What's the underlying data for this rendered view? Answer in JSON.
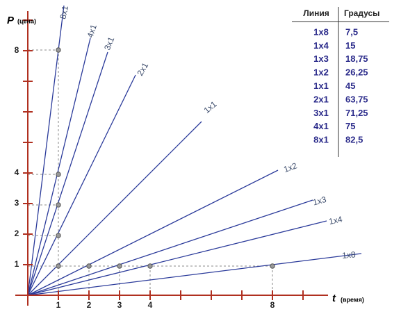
{
  "axes": {
    "y_label": "P",
    "y_unit": "(цена)",
    "x_label": "t",
    "x_unit": "(время)",
    "y_tick_labels": [
      "1",
      "2",
      "3",
      "4",
      "8"
    ],
    "x_tick_labels": [
      "1",
      "2",
      "3",
      "4",
      "8"
    ]
  },
  "fan_lines": [
    "8x1",
    "4x1",
    "3x1",
    "2x1",
    "1x1",
    "1x2",
    "1x3",
    "1x4",
    "1x8"
  ],
  "table": {
    "header": [
      "Линия",
      "Градусы"
    ],
    "rows": [
      [
        "1x8",
        "7,5"
      ],
      [
        "1x4",
        "15"
      ],
      [
        "1x3",
        "18,75"
      ],
      [
        "1x2",
        "26,25"
      ],
      [
        "1x1",
        "45"
      ],
      [
        "2x1",
        "63,75"
      ],
      [
        "3x1",
        "71,25"
      ],
      [
        "4x1",
        "75"
      ],
      [
        "8x1",
        "82,5"
      ]
    ]
  }
}
